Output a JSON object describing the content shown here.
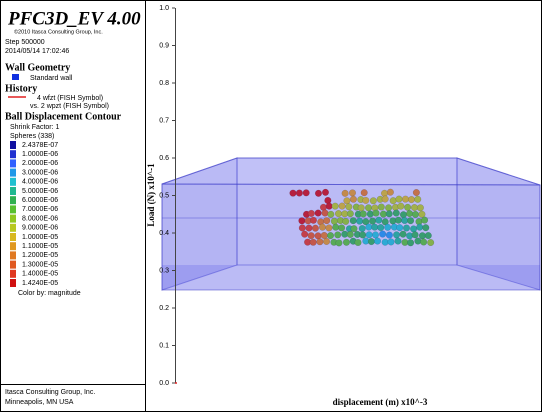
{
  "header": {
    "title": "PFC3D_EV 4.00",
    "copyright": "©2010 Itasca Consulting Group, Inc.",
    "step": "Step 500000",
    "timestamp": "2014/05/14 17:02:46"
  },
  "wall_geometry": {
    "heading": "Wall Geometry",
    "item": "Standard wall",
    "color": "#1030e0"
  },
  "history": {
    "heading": "History",
    "line1": "4 wfzt (FISH Symbol)",
    "line2": "vs. 2 wpzt (FISH Symbol)",
    "color": "#e02020"
  },
  "contour": {
    "heading": "Ball Displacement Contour",
    "shrink": "Shrink Factor: 1",
    "spheres": "Spheres (338)",
    "levels": [
      {
        "label": "2.4378E-07",
        "color": "#1010a0"
      },
      {
        "label": "1.0000E-06",
        "color": "#2030d0"
      },
      {
        "label": "2.0000E-06",
        "color": "#3060ff"
      },
      {
        "label": "3.0000E-06",
        "color": "#2098e8"
      },
      {
        "label": "4.0000E-06",
        "color": "#20c0d0"
      },
      {
        "label": "5.0000E-06",
        "color": "#20b890"
      },
      {
        "label": "6.0000E-06",
        "color": "#30b050"
      },
      {
        "label": "7.0000E-06",
        "color": "#58c030"
      },
      {
        "label": "8.0000E-06",
        "color": "#90c820"
      },
      {
        "label": "9.0000E-06",
        "color": "#b8c820"
      },
      {
        "label": "1.0000E-05",
        "color": "#d8b820"
      },
      {
        "label": "1.1000E-05",
        "color": "#e09820"
      },
      {
        "label": "1.2000E-05",
        "color": "#e07820"
      },
      {
        "label": "1.3000E-05",
        "color": "#e05820"
      },
      {
        "label": "1.4000E-05",
        "color": "#e03820"
      },
      {
        "label": "1.4240E-05",
        "color": "#d01010"
      }
    ],
    "color_by": "Color by: magnitude"
  },
  "footer": {
    "line1": "Itasca Consulting Group, Inc.",
    "line2": "Minneapolis, MN  USA"
  },
  "plot": {
    "ylabel": "Load (N) x10^-1",
    "xlabel": "displacement (m) x10^-3",
    "ylim": [
      0,
      1
    ],
    "yticks": [
      {
        "value": 0,
        "label": "0.0"
      },
      {
        "value": 0.1,
        "label": "0.1"
      },
      {
        "value": 0.2,
        "label": "0.2"
      },
      {
        "value": 0.3,
        "label": "0.3"
      },
      {
        "value": 0.4,
        "label": "0.4"
      },
      {
        "value": 0.5,
        "label": "0.5"
      },
      {
        "value": 0.6,
        "label": "0.6"
      },
      {
        "value": 0.7,
        "label": "0.7"
      },
      {
        "value": 0.8,
        "label": "0.8"
      },
      {
        "value": 0.9,
        "label": "0.9"
      },
      {
        "value": 1,
        "label": "1.0"
      }
    ]
  }
}
